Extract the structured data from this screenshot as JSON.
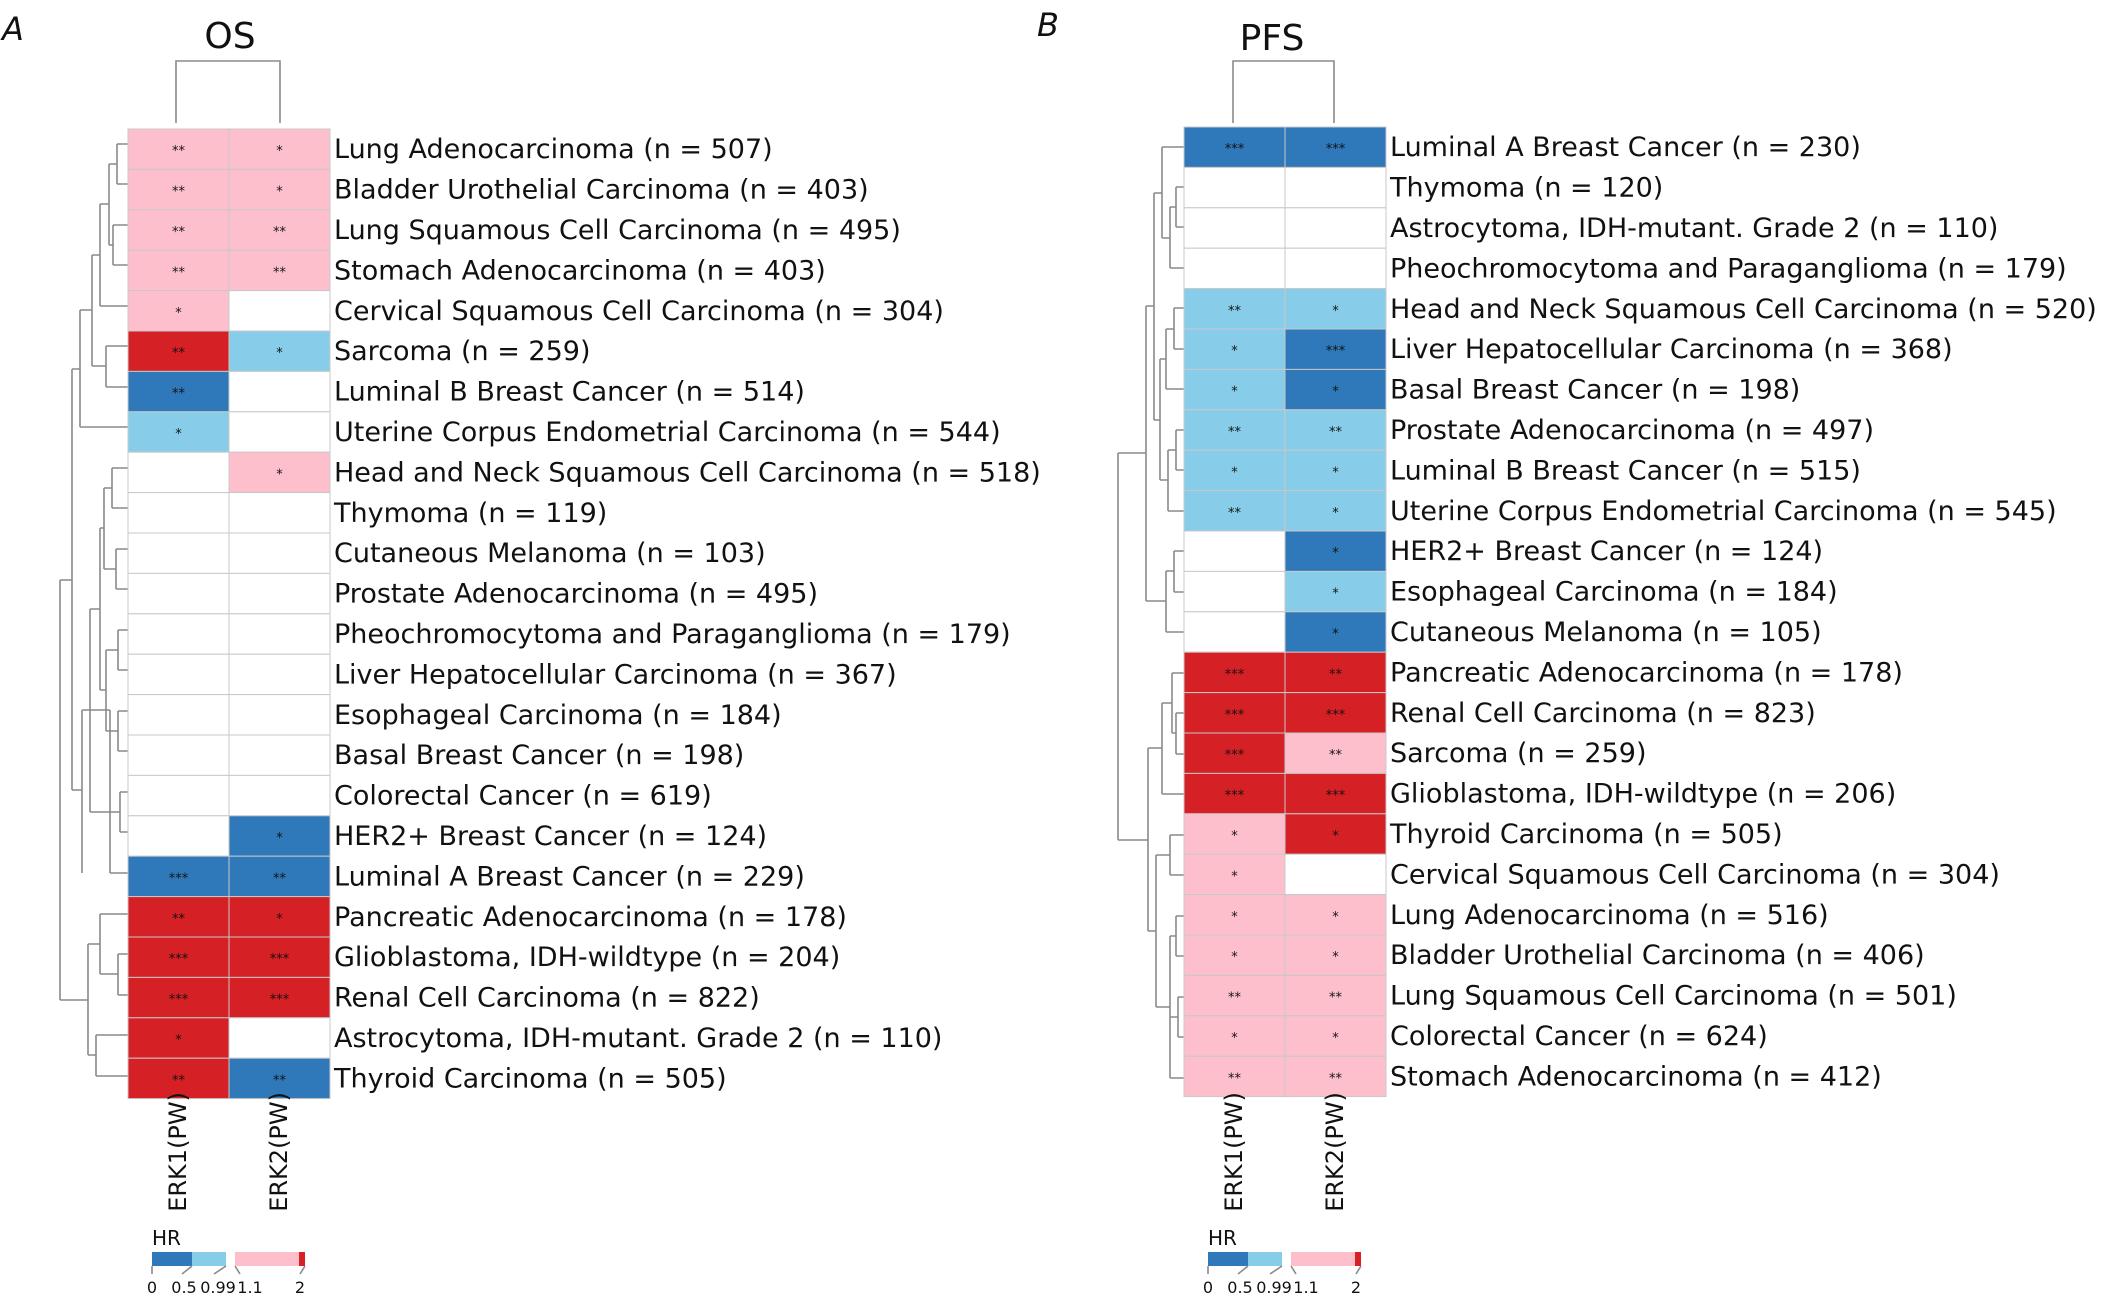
{
  "colors": {
    "strong_low": "#2f78b9",
    "weak_low": "#87cdea",
    "none": "#ffffff",
    "weak_high": "#fdbfcb",
    "strong_high": "#d52025"
  },
  "legend": {
    "title": "HR",
    "ticks": [
      "0",
      "0.5",
      "0.99",
      "1.1",
      "2"
    ]
  },
  "panels": [
    {
      "panel_label": "A",
      "title": "OS",
      "columns": [
        "ERK1(PW)",
        "ERK2(PW)"
      ],
      "rows": [
        {
          "label": "Lung Adenocarcinoma (n = 507)",
          "cells": [
            {
              "c": "weak_high",
              "s": "**"
            },
            {
              "c": "weak_high",
              "s": "*"
            }
          ]
        },
        {
          "label": "Bladder Urothelial Carcinoma (n = 403)",
          "cells": [
            {
              "c": "weak_high",
              "s": "**"
            },
            {
              "c": "weak_high",
              "s": "*"
            }
          ]
        },
        {
          "label": "Lung Squamous Cell Carcinoma (n = 495)",
          "cells": [
            {
              "c": "weak_high",
              "s": "**"
            },
            {
              "c": "weak_high",
              "s": "**"
            }
          ]
        },
        {
          "label": "Stomach Adenocarcinoma (n = 403)",
          "cells": [
            {
              "c": "weak_high",
              "s": "**"
            },
            {
              "c": "weak_high",
              "s": "**"
            }
          ]
        },
        {
          "label": "Cervical Squamous Cell Carcinoma (n = 304)",
          "cells": [
            {
              "c": "weak_high",
              "s": "*"
            },
            {
              "c": "none",
              "s": ""
            }
          ]
        },
        {
          "label": "Sarcoma (n = 259)",
          "cells": [
            {
              "c": "strong_high",
              "s": "**"
            },
            {
              "c": "weak_low",
              "s": "*"
            }
          ]
        },
        {
          "label": "Luminal B Breast Cancer (n = 514)",
          "cells": [
            {
              "c": "strong_low",
              "s": "**"
            },
            {
              "c": "none",
              "s": ""
            }
          ]
        },
        {
          "label": "Uterine Corpus Endometrial Carcinoma (n = 544)",
          "cells": [
            {
              "c": "weak_low",
              "s": "*"
            },
            {
              "c": "none",
              "s": ""
            }
          ]
        },
        {
          "label": "Head and Neck Squamous Cell Carcinoma (n = 518)",
          "cells": [
            {
              "c": "none",
              "s": ""
            },
            {
              "c": "weak_high",
              "s": "*"
            }
          ]
        },
        {
          "label": "Thymoma (n = 119)",
          "cells": [
            {
              "c": "none",
              "s": ""
            },
            {
              "c": "none",
              "s": ""
            }
          ]
        },
        {
          "label": "Cutaneous Melanoma (n = 103)",
          "cells": [
            {
              "c": "none",
              "s": ""
            },
            {
              "c": "none",
              "s": ""
            }
          ]
        },
        {
          "label": "Prostate Adenocarcinoma (n = 495)",
          "cells": [
            {
              "c": "none",
              "s": ""
            },
            {
              "c": "none",
              "s": ""
            }
          ]
        },
        {
          "label": "Pheochromocytoma and Paraganglioma (n = 179)",
          "cells": [
            {
              "c": "none",
              "s": ""
            },
            {
              "c": "none",
              "s": ""
            }
          ]
        },
        {
          "label": "Liver Hepatocellular Carcinoma (n = 367)",
          "cells": [
            {
              "c": "none",
              "s": ""
            },
            {
              "c": "none",
              "s": ""
            }
          ]
        },
        {
          "label": "Esophageal Carcinoma (n = 184)",
          "cells": [
            {
              "c": "none",
              "s": ""
            },
            {
              "c": "none",
              "s": ""
            }
          ]
        },
        {
          "label": "Basal Breast Cancer (n = 198)",
          "cells": [
            {
              "c": "none",
              "s": ""
            },
            {
              "c": "none",
              "s": ""
            }
          ]
        },
        {
          "label": "Colorectal Cancer (n = 619)",
          "cells": [
            {
              "c": "none",
              "s": ""
            },
            {
              "c": "none",
              "s": ""
            }
          ]
        },
        {
          "label": "HER2+ Breast Cancer (n = 124)",
          "cells": [
            {
              "c": "none",
              "s": ""
            },
            {
              "c": "strong_low",
              "s": "*"
            }
          ]
        },
        {
          "label": "Luminal A Breast Cancer (n = 229)",
          "cells": [
            {
              "c": "strong_low",
              "s": "***"
            },
            {
              "c": "strong_low",
              "s": "**"
            }
          ]
        },
        {
          "label": "Pancreatic Adenocarcinoma (n = 178)",
          "cells": [
            {
              "c": "strong_high",
              "s": "**"
            },
            {
              "c": "strong_high",
              "s": "*"
            }
          ]
        },
        {
          "label": "Glioblastoma, IDH-wildtype (n = 204)",
          "cells": [
            {
              "c": "strong_high",
              "s": "***"
            },
            {
              "c": "strong_high",
              "s": "***"
            }
          ]
        },
        {
          "label": "Renal Cell Carcinoma (n = 822)",
          "cells": [
            {
              "c": "strong_high",
              "s": "***"
            },
            {
              "c": "strong_high",
              "s": "***"
            }
          ]
        },
        {
          "label": "Astrocytoma, IDH-mutant. Grade 2 (n = 110)",
          "cells": [
            {
              "c": "strong_high",
              "s": "*"
            },
            {
              "c": "none",
              "s": ""
            }
          ]
        },
        {
          "label": "Thyroid Carcinoma (n = 505)",
          "cells": [
            {
              "c": "strong_high",
              "s": "**"
            },
            {
              "c": "strong_low",
              "s": "**"
            }
          ]
        }
      ]
    },
    {
      "panel_label": "B",
      "title": "PFS",
      "columns": [
        "ERK1(PW)",
        "ERK2(PW)"
      ],
      "rows": [
        {
          "label": "Luminal A Breast Cancer (n = 230)",
          "cells": [
            {
              "c": "strong_low",
              "s": "***"
            },
            {
              "c": "strong_low",
              "s": "***"
            }
          ]
        },
        {
          "label": "Thymoma (n = 120)",
          "cells": [
            {
              "c": "none",
              "s": ""
            },
            {
              "c": "none",
              "s": ""
            }
          ]
        },
        {
          "label": "Astrocytoma, IDH-mutant. Grade 2 (n = 110)",
          "cells": [
            {
              "c": "none",
              "s": ""
            },
            {
              "c": "none",
              "s": ""
            }
          ]
        },
        {
          "label": "Pheochromocytoma and Paraganglioma (n = 179)",
          "cells": [
            {
              "c": "none",
              "s": ""
            },
            {
              "c": "none",
              "s": ""
            }
          ]
        },
        {
          "label": "Head and Neck Squamous Cell Carcinoma (n = 520)",
          "cells": [
            {
              "c": "weak_low",
              "s": "**"
            },
            {
              "c": "weak_low",
              "s": "*"
            }
          ]
        },
        {
          "label": "Liver Hepatocellular Carcinoma (n = 368)",
          "cells": [
            {
              "c": "weak_low",
              "s": "*"
            },
            {
              "c": "strong_low",
              "s": "***"
            }
          ]
        },
        {
          "label": "Basal Breast Cancer (n = 198)",
          "cells": [
            {
              "c": "weak_low",
              "s": "*"
            },
            {
              "c": "strong_low",
              "s": "*"
            }
          ]
        },
        {
          "label": "Prostate Adenocarcinoma (n = 497)",
          "cells": [
            {
              "c": "weak_low",
              "s": "**"
            },
            {
              "c": "weak_low",
              "s": "**"
            }
          ]
        },
        {
          "label": "Luminal B Breast Cancer (n = 515)",
          "cells": [
            {
              "c": "weak_low",
              "s": "*"
            },
            {
              "c": "weak_low",
              "s": "*"
            }
          ]
        },
        {
          "label": "Uterine Corpus Endometrial Carcinoma (n = 545)",
          "cells": [
            {
              "c": "weak_low",
              "s": "**"
            },
            {
              "c": "weak_low",
              "s": "*"
            }
          ]
        },
        {
          "label": "HER2+ Breast Cancer (n = 124)",
          "cells": [
            {
              "c": "none",
              "s": ""
            },
            {
              "c": "strong_low",
              "s": "*"
            }
          ]
        },
        {
          "label": "Esophageal Carcinoma (n = 184)",
          "cells": [
            {
              "c": "none",
              "s": ""
            },
            {
              "c": "weak_low",
              "s": "*"
            }
          ]
        },
        {
          "label": "Cutaneous Melanoma (n = 105)",
          "cells": [
            {
              "c": "none",
              "s": ""
            },
            {
              "c": "strong_low",
              "s": "*"
            }
          ]
        },
        {
          "label": "Pancreatic Adenocarcinoma (n = 178)",
          "cells": [
            {
              "c": "strong_high",
              "s": "***"
            },
            {
              "c": "strong_high",
              "s": "**"
            }
          ]
        },
        {
          "label": "Renal Cell Carcinoma (n = 823)",
          "cells": [
            {
              "c": "strong_high",
              "s": "***"
            },
            {
              "c": "strong_high",
              "s": "***"
            }
          ]
        },
        {
          "label": "Sarcoma (n = 259)",
          "cells": [
            {
              "c": "strong_high",
              "s": "***"
            },
            {
              "c": "weak_high",
              "s": "**"
            }
          ]
        },
        {
          "label": "Glioblastoma, IDH-wildtype (n = 206)",
          "cells": [
            {
              "c": "strong_high",
              "s": "***"
            },
            {
              "c": "strong_high",
              "s": "***"
            }
          ]
        },
        {
          "label": "Thyroid Carcinoma (n = 505)",
          "cells": [
            {
              "c": "weak_high",
              "s": "*"
            },
            {
              "c": "strong_high",
              "s": "*"
            }
          ]
        },
        {
          "label": "Cervical Squamous Cell Carcinoma (n = 304)",
          "cells": [
            {
              "c": "weak_high",
              "s": "*"
            },
            {
              "c": "none",
              "s": ""
            }
          ]
        },
        {
          "label": "Lung Adenocarcinoma (n = 516)",
          "cells": [
            {
              "c": "weak_high",
              "s": "*"
            },
            {
              "c": "weak_high",
              "s": "*"
            }
          ]
        },
        {
          "label": "Bladder Urothelial Carcinoma (n = 406)",
          "cells": [
            {
              "c": "weak_high",
              "s": "*"
            },
            {
              "c": "weak_high",
              "s": "*"
            }
          ]
        },
        {
          "label": "Lung Squamous Cell Carcinoma (n = 501)",
          "cells": [
            {
              "c": "weak_high",
              "s": "**"
            },
            {
              "c": "weak_high",
              "s": "**"
            }
          ]
        },
        {
          "label": "Colorectal Cancer (n = 624)",
          "cells": [
            {
              "c": "weak_high",
              "s": "*"
            },
            {
              "c": "weak_high",
              "s": "*"
            }
          ]
        },
        {
          "label": "Stomach Adenocarcinoma (n = 412)",
          "cells": [
            {
              "c": "weak_high",
              "s": "**"
            },
            {
              "c": "weak_high",
              "s": "**"
            }
          ]
        }
      ]
    }
  ]
}
